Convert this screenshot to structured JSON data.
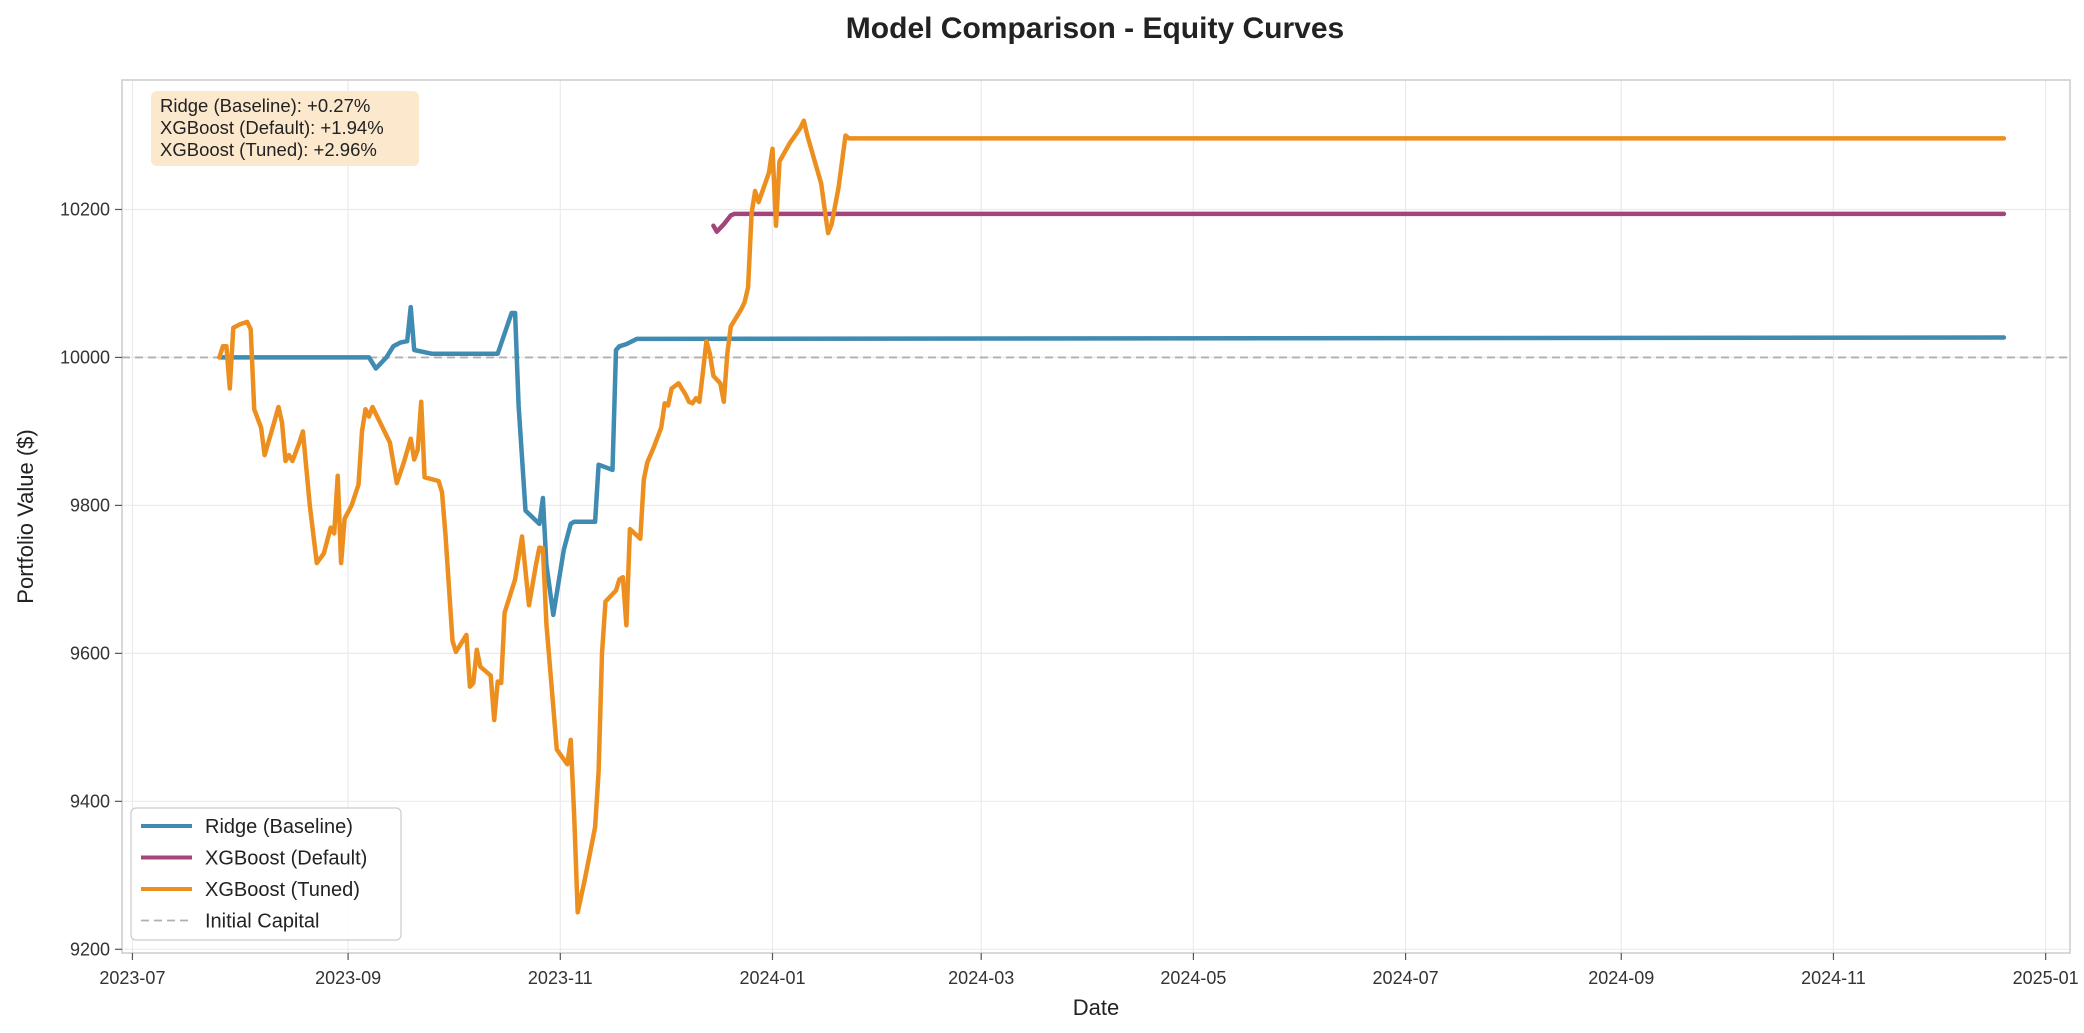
{
  "chart_data": {
    "type": "line",
    "title": "Model Comparison - Equity Curves",
    "xlabel": "Date",
    "ylabel": "Portfolio Value ($)",
    "xlim": [
      "2023-06-28",
      "2025-01-08"
    ],
    "ylim": [
      9195,
      10375
    ],
    "x_ticks": [
      "2023-07",
      "2023-09",
      "2023-11",
      "2024-01",
      "2024-03",
      "2024-05",
      "2024-07",
      "2024-09",
      "2024-11",
      "2025-01"
    ],
    "y_ticks": [
      9200,
      9400,
      9600,
      9800,
      10000,
      10200
    ],
    "grid": true,
    "legend_position": "lower-left",
    "reference_line": {
      "name": "Initial Capital",
      "y": 10000,
      "style": "dashed",
      "color": "#b0b0b0"
    },
    "annotation": [
      "Ridge (Baseline): +0.27%",
      "XGBoost (Default): +1.94%",
      "XGBoost (Tuned): +2.96%"
    ],
    "annotation_bg": "#fbe8cd",
    "series": [
      {
        "name": "Ridge (Baseline)",
        "color": "#3f8bb1",
        "points": [
          [
            "2023-07-26",
            10000
          ],
          [
            "2023-09-03",
            10000
          ],
          [
            "2023-09-07",
            10000
          ],
          [
            "2023-09-09",
            9985
          ],
          [
            "2023-09-12",
            10000
          ],
          [
            "2023-09-14",
            10015
          ],
          [
            "2023-09-16",
            10020
          ],
          [
            "2023-09-18",
            10022
          ],
          [
            "2023-09-19",
            10068
          ],
          [
            "2023-09-20",
            10010
          ],
          [
            "2023-09-25",
            10005
          ],
          [
            "2023-10-14",
            10005
          ],
          [
            "2023-10-18",
            10060
          ],
          [
            "2023-10-19",
            10060
          ],
          [
            "2023-10-20",
            9935
          ],
          [
            "2023-10-22",
            9793
          ],
          [
            "2023-10-26",
            9775
          ],
          [
            "2023-10-27",
            9810
          ],
          [
            "2023-10-28",
            9720
          ],
          [
            "2023-10-30",
            9652
          ],
          [
            "2023-11-02",
            9740
          ],
          [
            "2023-11-04",
            9775
          ],
          [
            "2023-11-05",
            9778
          ],
          [
            "2023-11-11",
            9778
          ],
          [
            "2023-11-12",
            9855
          ],
          [
            "2023-11-16",
            9848
          ],
          [
            "2023-11-17",
            10010
          ],
          [
            "2023-11-18",
            10015
          ],
          [
            "2023-11-20",
            10018
          ],
          [
            "2023-11-23",
            10025
          ],
          [
            "2024-12-20",
            10027
          ]
        ]
      },
      {
        "name": "XGBoost (Default)",
        "color": "#a3457a",
        "points": [
          [
            "2023-12-15",
            10178
          ],
          [
            "2023-12-16",
            10170
          ],
          [
            "2023-12-18",
            10180
          ],
          [
            "2023-12-20",
            10192
          ],
          [
            "2023-12-21",
            10194
          ],
          [
            "2024-12-20",
            10194
          ]
        ]
      },
      {
        "name": "XGBoost (Tuned)",
        "color": "#ed8f1f",
        "points": [
          [
            "2023-07-26",
            10000
          ],
          [
            "2023-07-27",
            10015
          ],
          [
            "2023-07-28",
            10015
          ],
          [
            "2023-07-29",
            9958
          ],
          [
            "2023-07-30",
            10040
          ],
          [
            "2023-08-01",
            10045
          ],
          [
            "2023-08-03",
            10048
          ],
          [
            "2023-08-04",
            10038
          ],
          [
            "2023-08-05",
            9930
          ],
          [
            "2023-08-07",
            9905
          ],
          [
            "2023-08-08",
            9868
          ],
          [
            "2023-08-10",
            9900
          ],
          [
            "2023-08-12",
            9933
          ],
          [
            "2023-08-13",
            9912
          ],
          [
            "2023-08-14",
            9860
          ],
          [
            "2023-08-15",
            9868
          ],
          [
            "2023-08-16",
            9860
          ],
          [
            "2023-08-18",
            9885
          ],
          [
            "2023-08-19",
            9900
          ],
          [
            "2023-08-21",
            9800
          ],
          [
            "2023-08-23",
            9722
          ],
          [
            "2023-08-25",
            9735
          ],
          [
            "2023-08-27",
            9770
          ],
          [
            "2023-08-28",
            9762
          ],
          [
            "2023-08-29",
            9840
          ],
          [
            "2023-08-30",
            9722
          ],
          [
            "2023-08-31",
            9782
          ],
          [
            "2023-09-02",
            9800
          ],
          [
            "2023-09-04",
            9828
          ],
          [
            "2023-09-05",
            9900
          ],
          [
            "2023-09-06",
            9930
          ],
          [
            "2023-09-07",
            9920
          ],
          [
            "2023-09-08",
            9933
          ],
          [
            "2023-09-13",
            9885
          ],
          [
            "2023-09-15",
            9830
          ],
          [
            "2023-09-17",
            9858
          ],
          [
            "2023-09-19",
            9890
          ],
          [
            "2023-09-20",
            9862
          ],
          [
            "2023-09-21",
            9875
          ],
          [
            "2023-09-22",
            9940
          ],
          [
            "2023-09-23",
            9838
          ],
          [
            "2023-09-27",
            9833
          ],
          [
            "2023-09-28",
            9818
          ],
          [
            "2023-09-29",
            9760
          ],
          [
            "2023-10-01",
            9617
          ],
          [
            "2023-10-02",
            9602
          ],
          [
            "2023-10-05",
            9625
          ],
          [
            "2023-10-06",
            9555
          ],
          [
            "2023-10-07",
            9560
          ],
          [
            "2023-10-08",
            9605
          ],
          [
            "2023-10-09",
            9582
          ],
          [
            "2023-10-12",
            9570
          ],
          [
            "2023-10-13",
            9510
          ],
          [
            "2023-10-14",
            9562
          ],
          [
            "2023-10-15",
            9560
          ],
          [
            "2023-10-16",
            9655
          ],
          [
            "2023-10-19",
            9700
          ],
          [
            "2023-10-21",
            9758
          ],
          [
            "2023-10-23",
            9665
          ],
          [
            "2023-10-25",
            9720
          ],
          [
            "2023-10-26",
            9743
          ],
          [
            "2023-10-27",
            9742
          ],
          [
            "2023-10-28",
            9640
          ],
          [
            "2023-10-31",
            9470
          ],
          [
            "2023-11-03",
            9450
          ],
          [
            "2023-11-04",
            9483
          ],
          [
            "2023-11-05",
            9380
          ],
          [
            "2023-11-06",
            9250
          ],
          [
            "2023-11-08",
            9293
          ],
          [
            "2023-11-11",
            9365
          ],
          [
            "2023-11-12",
            9440
          ],
          [
            "2023-11-13",
            9600
          ],
          [
            "2023-11-14",
            9670
          ],
          [
            "2023-11-17",
            9685
          ],
          [
            "2023-11-18",
            9700
          ],
          [
            "2023-11-19",
            9703
          ],
          [
            "2023-11-20",
            9638
          ],
          [
            "2023-11-21",
            9768
          ],
          [
            "2023-11-24",
            9755
          ],
          [
            "2023-11-25",
            9835
          ],
          [
            "2023-11-26",
            9858
          ],
          [
            "2023-11-28",
            9880
          ],
          [
            "2023-11-30",
            9905
          ],
          [
            "2023-12-01",
            9938
          ],
          [
            "2023-12-02",
            9935
          ],
          [
            "2023-12-03",
            9958
          ],
          [
            "2023-12-05",
            9965
          ],
          [
            "2023-12-07",
            9950
          ],
          [
            "2023-12-08",
            9940
          ],
          [
            "2023-12-09",
            9938
          ],
          [
            "2023-12-10",
            9945
          ],
          [
            "2023-12-11",
            9940
          ],
          [
            "2023-12-12",
            9980
          ],
          [
            "2023-12-13",
            10022
          ],
          [
            "2023-12-14",
            10005
          ],
          [
            "2023-12-15",
            9975
          ],
          [
            "2023-12-17",
            9965
          ],
          [
            "2023-12-18",
            9940
          ],
          [
            "2023-12-19",
            10005
          ],
          [
            "2023-12-20",
            10042
          ],
          [
            "2023-12-23",
            10065
          ],
          [
            "2023-12-24",
            10075
          ],
          [
            "2023-12-25",
            10095
          ],
          [
            "2023-12-26",
            10195
          ],
          [
            "2023-12-27",
            10225
          ],
          [
            "2023-12-28",
            10210
          ],
          [
            "2023-12-31",
            10250
          ],
          [
            "2024-01-01",
            10282
          ],
          [
            "2024-01-02",
            10178
          ],
          [
            "2024-01-03",
            10265
          ],
          [
            "2024-01-06",
            10290
          ],
          [
            "2024-01-09",
            10310
          ],
          [
            "2024-01-10",
            10320
          ],
          [
            "2024-01-11",
            10300
          ],
          [
            "2024-01-15",
            10235
          ],
          [
            "2024-01-16",
            10200
          ],
          [
            "2024-01-17",
            10168
          ],
          [
            "2024-01-18",
            10180
          ],
          [
            "2024-01-20",
            10230
          ],
          [
            "2024-01-22",
            10300
          ],
          [
            "2024-01-23",
            10296
          ],
          [
            "2024-12-20",
            10296
          ]
        ]
      }
    ]
  }
}
